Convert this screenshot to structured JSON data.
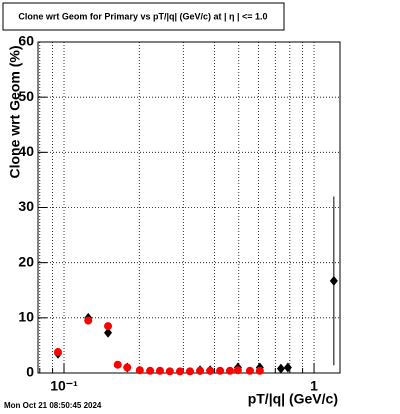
{
  "chart_data": {
    "type": "scatter",
    "title": "Clone wrt Geom for Primary vs pT/|q| (GeV/c) at |  η  | <= 1.0",
    "x_label": "pT/|q| (GeV/c)",
    "y_label": "Clone wrt Geom (%)",
    "footer": "Mon Oct 21 08:50:45 2024",
    "log_x": true,
    "grid": true,
    "xlim": [
      0.0787,
      1.27
    ],
    "xticks": [
      {
        "value": 0.1,
        "label": "10⁻¹"
      },
      1
    ],
    "xminorticks": [
      0.08,
      0.09,
      0.2,
      0.3,
      0.4,
      0.5,
      0.6,
      0.7,
      0.8,
      0.9
    ],
    "ylim": [
      0,
      60
    ],
    "yticks": [
      0,
      10,
      20,
      30,
      40,
      50,
      60
    ],
    "series": [
      {
        "color": "#000000",
        "marker": "diamond",
        "x": [
          0.0946,
          0.125,
          0.15,
          0.179,
          0.35,
          0.384,
          0.496,
          0.607,
          0.737,
          0.786,
          1.2
        ],
        "values": [
          3.5,
          10,
          7.3,
          1,
          0.5,
          0.5,
          1,
          1,
          0.8,
          1,
          16.7
        ],
        "errors": [
          0,
          0,
          0,
          0,
          0,
          0,
          0,
          0,
          0,
          0,
          15.3
        ]
      },
      {
        "color": "#ff0000",
        "marker": "circle",
        "x": [
          0.0946,
          0.125,
          0.15,
          0.164,
          0.179,
          0.201,
          0.221,
          0.242,
          0.265,
          0.291,
          0.319,
          0.35,
          0.384,
          0.421,
          0.461,
          0.496,
          0.554,
          0.607
        ],
        "values": [
          3.8,
          9.5,
          8.5,
          1.5,
          1,
          0.5,
          0.4,
          0.4,
          0.3,
          0.3,
          0.3,
          0.4,
          0.4,
          0.4,
          0.4,
          0.5,
          0.4,
          0.4
        ]
      }
    ]
  }
}
